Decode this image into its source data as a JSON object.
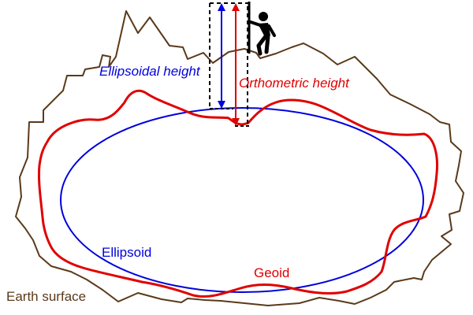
{
  "labels": {
    "ellipsoidal_height": "Ellipsoidal height",
    "orthometric_height": "Orthometric height",
    "ellipsoid": "Ellipsoid",
    "geoid": "Geoid",
    "earth_surface": "Earth surface"
  },
  "colors": {
    "ellipsoid": "#0000dd",
    "geoid": "#e00000",
    "earth_surface": "#5a3a1a",
    "marker": "#000000",
    "person": "#000000",
    "background": "#ffffff"
  },
  "icons": {
    "person": "surveyor-person-icon"
  }
}
